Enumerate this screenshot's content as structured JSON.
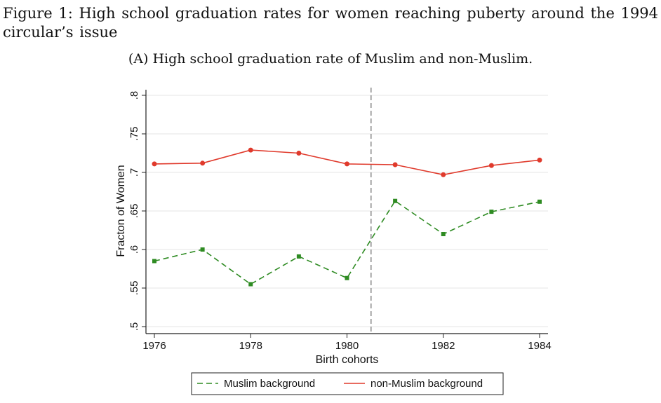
{
  "caption": {
    "figure_title": "Figure 1:  High school graduation rates for women reaching puberty around the 1994 circular’s issue",
    "panel_title": "(A) High school graduation rate of Muslim and non-Muslim."
  },
  "chart_data": {
    "type": "line",
    "xlabel": "Birth cohorts",
    "ylabel": "Fracton of Women",
    "x": [
      1976,
      1977,
      1978,
      1979,
      1980,
      1981,
      1982,
      1983,
      1984
    ],
    "xlim": [
      1976,
      1984
    ],
    "ylim": [
      0.5,
      0.8
    ],
    "x_ticks": [
      1976,
      1978,
      1980,
      1982,
      1984
    ],
    "x_tick_labels": [
      "1976",
      "1978",
      "1980",
      "1982",
      "1984"
    ],
    "y_ticks": [
      0.5,
      0.55,
      0.6,
      0.65,
      0.7,
      0.75,
      0.8
    ],
    "y_tick_labels": [
      ".5",
      ".55",
      ".6",
      ".65",
      ".7",
      ".75",
      ".8"
    ],
    "grid": true,
    "vertical_reference_line": 1980.5,
    "legend_position": "bottom",
    "series": [
      {
        "name": "Muslim background",
        "color": "#2e8b22",
        "line_style": "dashed",
        "marker": "square",
        "values": [
          0.585,
          0.6,
          0.555,
          0.591,
          0.563,
          0.663,
          0.62,
          0.649,
          0.662
        ]
      },
      {
        "name": "non-Muslim background",
        "color": "#e03a2c",
        "line_style": "solid",
        "marker": "circle",
        "values": [
          0.711,
          0.712,
          0.729,
          0.725,
          0.711,
          0.71,
          0.697,
          0.709,
          0.716
        ]
      }
    ]
  },
  "colors": {
    "grid": "#e6e6e6",
    "axis": "#222222",
    "reference_line": "#777777"
  }
}
